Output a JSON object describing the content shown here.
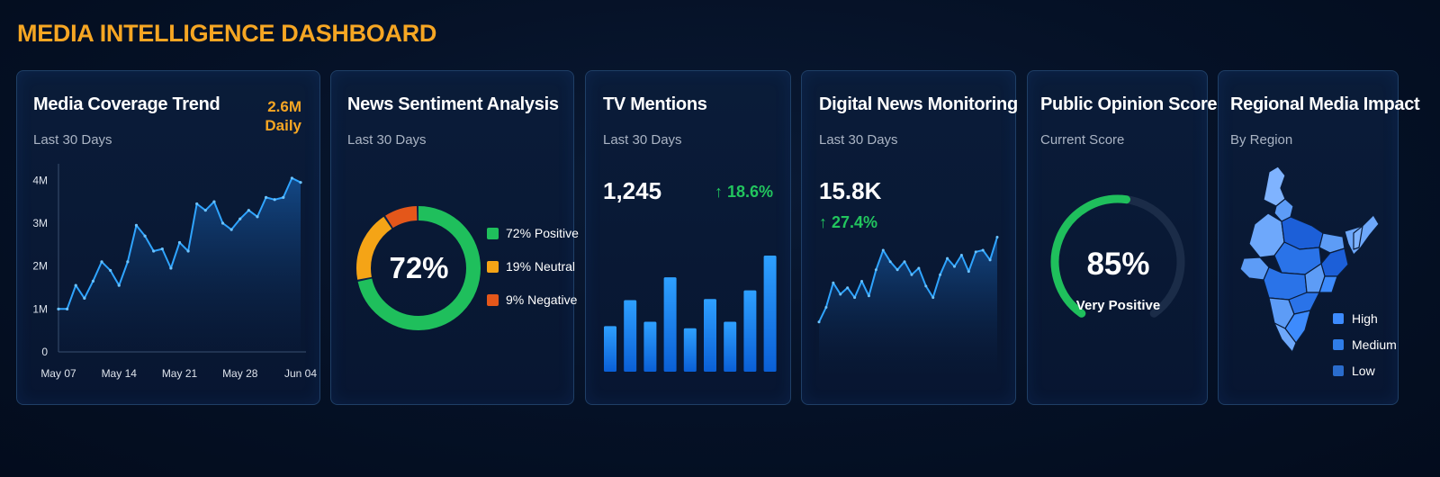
{
  "dashboard": {
    "title": "MEDIA INTELLIGENCE DASHBOARD"
  },
  "colors": {
    "accent": "#f6a623",
    "line": "#2fa4ff",
    "positive": "#1fbf5c",
    "neutral": "#f5a416",
    "negative": "#e4571a",
    "card_border": "#1f3f66",
    "up": "#22c55e"
  },
  "coverage": {
    "title": "Media Coverage Trend",
    "subtitle": "Last 30 Days",
    "badge_value": "2.6M",
    "badge_label": "Daily",
    "chart_data": {
      "type": "area",
      "x": [
        "May 07",
        "May 08",
        "May 09",
        "May 10",
        "May 11",
        "May 12",
        "May 13",
        "May 14",
        "May 15",
        "May 16",
        "May 17",
        "May 18",
        "May 19",
        "May 20",
        "May 21",
        "May 22",
        "May 23",
        "May 24",
        "May 25",
        "May 26",
        "May 27",
        "May 28",
        "May 29",
        "May 30",
        "May 31",
        "Jun 01",
        "Jun 02",
        "Jun 03",
        "Jun 04"
      ],
      "values": [
        1.0,
        1.0,
        1.55,
        1.25,
        1.65,
        2.1,
        1.9,
        1.55,
        2.1,
        2.95,
        2.7,
        2.35,
        2.4,
        1.95,
        2.55,
        2.35,
        3.45,
        3.3,
        3.5,
        3.0,
        2.85,
        3.1,
        3.3,
        3.15,
        3.6,
        3.55,
        3.6,
        4.05,
        3.95
      ],
      "x_ticks": [
        "May 07",
        "May 14",
        "May 21",
        "May 28",
        "Jun 04"
      ],
      "y_ticks": [
        "0",
        "1M",
        "2M",
        "3M",
        "4M"
      ],
      "ylim": [
        0,
        4.3
      ],
      "grid": false
    }
  },
  "sentiment": {
    "title": "News Sentiment Analysis",
    "subtitle": "Last 30 Days",
    "center_label": "72%",
    "chart_data": {
      "type": "pie",
      "categories": [
        "Positive",
        "Neutral",
        "Negative"
      ],
      "values": [
        72,
        19,
        9
      ],
      "labels": [
        "72% Positive",
        "19% Neutral",
        "9% Negative"
      ],
      "colors": [
        "#1fbf5c",
        "#f5a416",
        "#e4571a"
      ],
      "legend": "right"
    }
  },
  "tv": {
    "title": "TV Mentions",
    "subtitle": "Last 30 Days",
    "value": "1,245",
    "change": "↑ 18.6%",
    "chart_data": {
      "type": "bar",
      "values": [
        2.1,
        3.3,
        2.3,
        4.35,
        2.0,
        3.35,
        2.3,
        3.75,
        5.35
      ],
      "ylim": [
        0,
        5.6
      ]
    }
  },
  "digital": {
    "title": "Digital News Monitoring",
    "subtitle": "Last 30 Days",
    "value": "15.8K",
    "change": "↑ 27.4%",
    "chart_data": {
      "type": "area",
      "values": [
        1.0,
        1.45,
        2.2,
        1.85,
        2.05,
        1.75,
        2.25,
        1.8,
        2.6,
        3.2,
        2.85,
        2.6,
        2.85,
        2.45,
        2.65,
        2.1,
        1.75,
        2.45,
        2.95,
        2.7,
        3.05,
        2.55,
        3.15,
        3.2,
        2.9,
        3.6
      ],
      "ylim": [
        0,
        4
      ]
    }
  },
  "opinion": {
    "title": "Public Opinion Score",
    "subtitle": "Current Score",
    "score_label": "85%",
    "score_caption": "Very Positive",
    "chart_data": {
      "type": "gauge",
      "value": 85,
      "max": 100
    }
  },
  "regional": {
    "title": "Regional Media Impact",
    "subtitle": "By Region",
    "legend": [
      {
        "label": "High",
        "color": "#3d8bfd"
      },
      {
        "label": "Medium",
        "color": "#2f7de8"
      },
      {
        "label": "Low",
        "color": "#2a6ccc"
      }
    ]
  }
}
